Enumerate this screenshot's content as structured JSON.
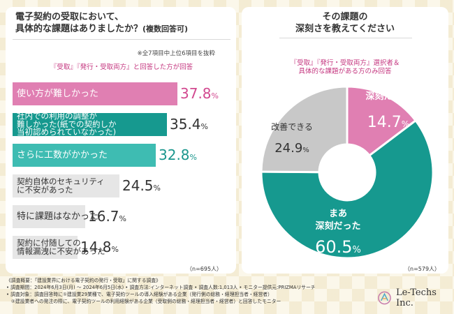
{
  "left": {
    "title_line1": "電子契約の受取において、",
    "title_line2": "具体的な課題はありましたか？",
    "title_suffix": "(複数回答可)",
    "note": "※全7項目中上位6項目を抜粋",
    "condition": "『受取』『発行・受取両方』と回答した方が回答",
    "n": "（n=695人）"
  },
  "right": {
    "title_line1": "その課題の",
    "title_line2": "深刻さを教えてください",
    "condition_line1": "『受取』『発行・受取両方』選択者＆",
    "condition_line2": "具体的な課題がある方のみ回答",
    "n": "（n=579人）"
  },
  "chart_data": [
    {
      "type": "bar",
      "orientation": "horizontal",
      "categories": [
        "使い方が難しかった",
        "社内での利用の調整が難しかった(紙での契約しか当初認められていなかった)",
        "さらに工数がかかった",
        "契約自体のセキュリティに不安があった",
        "特に課題はなかった",
        "契約に付随しての情報漏洩に不安があった"
      ],
      "label_lines": [
        [
          "使い方が難しかった"
        ],
        [
          "社内での利用の調整が",
          "難しかった(紙での契約しか",
          "当初認められていなかった)"
        ],
        [
          "さらに工数がかかった"
        ],
        [
          "契約自体のセキュリティ",
          "に不安があった"
        ],
        [
          "特に課題はなかった"
        ],
        [
          "契約に付随しての",
          "情報漏洩に不安があった"
        ]
      ],
      "values": [
        37.8,
        35.4,
        32.8,
        24.5,
        16.7,
        14.8
      ],
      "value_labels": [
        "37.8",
        "35.4",
        "32.8",
        "24.5",
        "16.7",
        "14.8"
      ],
      "unit": "%",
      "colors": [
        "#e07fb2",
        "#16998f",
        "#3ebcb2",
        "#e6e6e6",
        "#e6e6e6",
        "#e6e6e6"
      ],
      "label_colors": [
        "#ffffff",
        "#ffffff",
        "#ffffff",
        "#333333",
        "#333333",
        "#333333"
      ],
      "value_colors": [
        "#d2488f",
        "#333333",
        "#1a968d",
        "#333333",
        "#333333",
        "#333333"
      ],
      "xlim": [
        0,
        40
      ]
    },
    {
      "type": "pie",
      "donut": true,
      "labels": [
        [
          "深刻だった"
        ],
        [
          "まあ",
          "深刻だった"
        ],
        [
          "改善できる"
        ]
      ],
      "values": [
        14.7,
        60.5,
        24.9
      ],
      "value_labels": [
        "14.7",
        "60.5",
        "24.9"
      ],
      "unit": "%",
      "colors": [
        "#e07fb2",
        "#16998f",
        "#c8c8c8"
      ],
      "text_colors": [
        "#ffffff",
        "#ffffff",
        "#333333"
      ]
    }
  ],
  "footer": {
    "line1": "《調査概要：「建設業界における電子契約の発行・受取」に関する調査》",
    "line2": "• 調査期間：2024年6月3日(月) ～ 2024年6月5日(水) • 調査方法:インターネット調査  • 調査人数:1,013人  • モニター提供元:PRIZMAリサーチ",
    "line3": "• 調査対象：調査回答時に①建設業29業種で、電子契約ツールの導入経験がある企業（発行側の総務・経理担当者・経営者）",
    "line4": "　②建設業者への発注の際に、電子契約ツールの利用経験がある企業（受取側の総務・経理担当者・経営者）と回答したモニター"
  },
  "logo": {
    "text": "Le-Techs Inc."
  }
}
